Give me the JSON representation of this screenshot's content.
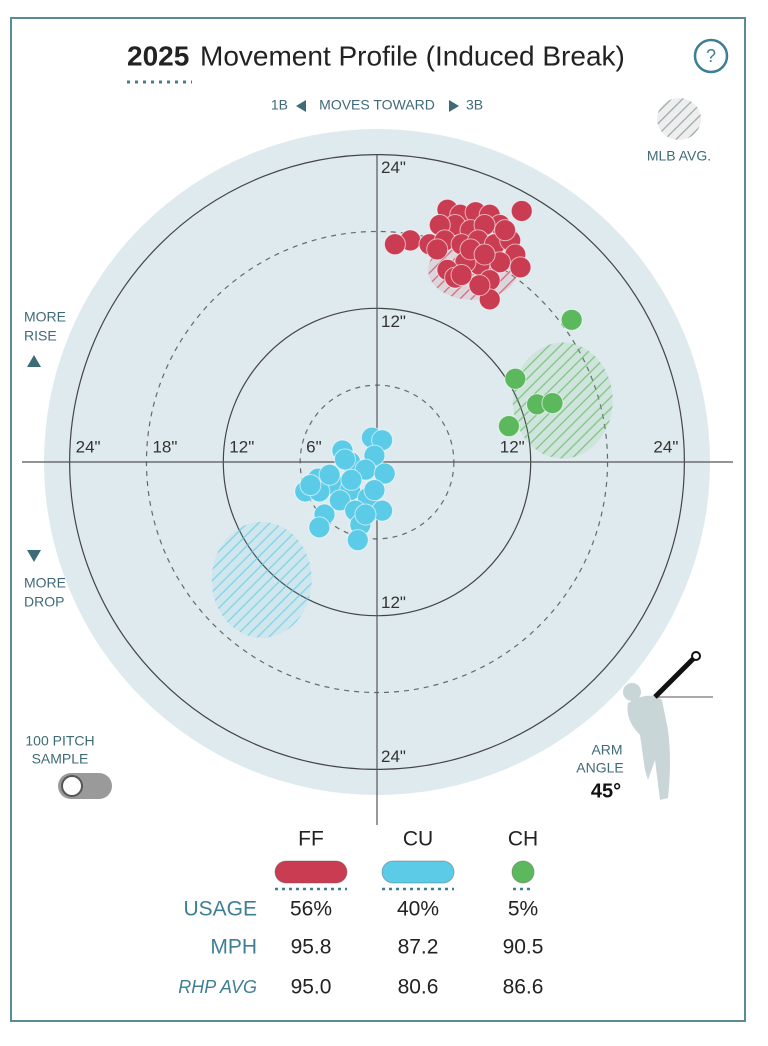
{
  "chart_data": {
    "type": "scatter",
    "title_year": "2025",
    "title": "Movement Profile (Induced Break)",
    "help": "?",
    "x_label": {
      "left": "1B",
      "middle": "MOVES TOWARD",
      "right": "3B"
    },
    "y_label_top": [
      "MORE",
      "RISE"
    ],
    "y_label_bottom": [
      "MORE",
      "DROP"
    ],
    "avg_label": "MLB AVG.",
    "sample_label": [
      "100 PITCH",
      "SAMPLE"
    ],
    "arm_angle": {
      "label": [
        "ARM",
        "ANGLE"
      ],
      "value": 45,
      "value_label": "45°"
    },
    "xlim": [
      -26,
      26
    ],
    "ylim": [
      -26,
      26
    ],
    "xticks": [
      {
        "value": -24,
        "label": "24\""
      },
      {
        "value": -18,
        "label": "18\""
      },
      {
        "value": -12,
        "label": "12\""
      },
      {
        "value": -6,
        "label": "6\""
      },
      {
        "value": 12,
        "label": "12\""
      },
      {
        "value": 24,
        "label": "24\""
      }
    ],
    "yticks": [
      {
        "value": 24,
        "label": "24\""
      },
      {
        "value": 12,
        "label": "12\""
      },
      {
        "value": -12,
        "label": "12\""
      },
      {
        "value": -24,
        "label": "24\""
      }
    ],
    "series": [
      {
        "name": "FF",
        "color": "#c93c52",
        "avg": [
          7.5,
          15.0
        ],
        "x": [
          5.5,
          6.5,
          7.7,
          8.8,
          11.3,
          9.6,
          6.1,
          7.3,
          8.4,
          4.9,
          2.6,
          1.4,
          4.1,
          5.3,
          6.6,
          7.9,
          9.2,
          10.4,
          10.8,
          9.6,
          8.0,
          6.9,
          5.5,
          11.2,
          8.8,
          6.1,
          7.3,
          8.4,
          4.7,
          10.0,
          8.8,
          8.0,
          6.6
        ],
        "y": [
          19.7,
          19.3,
          19.5,
          19.3,
          19.6,
          18.5,
          18.5,
          18.1,
          18.5,
          18.5,
          17.3,
          17.0,
          17.0,
          17.3,
          17.0,
          17.3,
          17.0,
          17.3,
          16.2,
          15.6,
          15.4,
          15.6,
          15.0,
          15.2,
          14.2,
          14.4,
          16.6,
          16.2,
          16.6,
          18.1,
          12.7,
          13.8,
          14.6
        ]
      },
      {
        "name": "CU",
        "color": "#5ccbe8",
        "avg": [
          -9.0,
          -9.2
        ],
        "x": [
          -0.4,
          0.4,
          -0.2,
          -2.7,
          -2.1,
          -0.9,
          0.6,
          -4.6,
          -3.3,
          -2.1,
          -0.7,
          -5.6,
          -4.5,
          -2.9,
          -1.7,
          0.4,
          -4.1,
          -1.3,
          -4.5,
          -1.5,
          -2.5,
          -3.7,
          -5.2,
          -0.9,
          -0.2,
          -2.0
        ],
        "y": [
          1.9,
          1.7,
          0.5,
          0.9,
          0.0,
          -0.6,
          -0.9,
          -1.3,
          -1.8,
          -2.2,
          -2.8,
          -2.3,
          -2.3,
          -3.0,
          -3.8,
          -3.8,
          -4.1,
          -4.9,
          -5.1,
          -6.1,
          0.2,
          -1.0,
          -1.8,
          -4.1,
          -2.2,
          -1.4
        ]
      },
      {
        "name": "CH",
        "color": "#5cb85c",
        "avg": [
          14.5,
          4.8
        ],
        "x": [
          15.2,
          10.8,
          12.5,
          13.7,
          10.3
        ],
        "y": [
          11.1,
          6.5,
          4.5,
          4.6,
          2.8
        ]
      }
    ],
    "table": {
      "row_labels": [
        "USAGE",
        "MPH",
        "RHP AVG"
      ],
      "usage": {
        "values": [
          56,
          40,
          5
        ],
        "value_labels": [
          "56%",
          "40%",
          "5%"
        ]
      },
      "mph": {
        "values": [
          95.8,
          87.2,
          90.5
        ]
      },
      "rhp_avg": {
        "values": [
          95.0,
          80.6,
          86.6
        ],
        "value_labels": [
          "95.0",
          "80.6",
          "86.6"
        ]
      }
    }
  }
}
